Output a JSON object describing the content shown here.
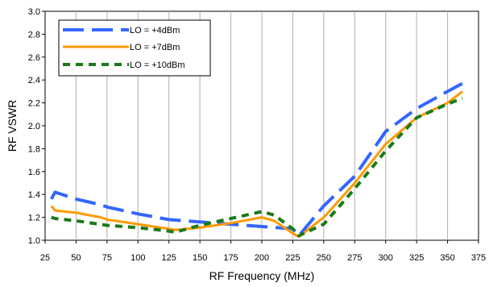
{
  "chart_data": {
    "type": "line",
    "title": "",
    "xlabel": "RF Frequency (MHz)",
    "ylabel": "RF VSWR",
    "xlim": [
      25,
      375
    ],
    "ylim": [
      1.0,
      3.0
    ],
    "xticks": [
      25,
      50,
      75,
      100,
      125,
      150,
      175,
      200,
      225,
      250,
      275,
      300,
      325,
      350,
      375
    ],
    "yticks": [
      1.0,
      1.2,
      1.4,
      1.6,
      1.8,
      2.0,
      2.2,
      2.4,
      2.6,
      2.8,
      3.0
    ],
    "ytick_labels": [
      "1.0",
      "1.2",
      "1.4",
      "1.6",
      "1.8",
      "2.0",
      "2.2",
      "2.4",
      "2.6",
      "2.8",
      "3.0"
    ],
    "grid": "vertical",
    "legend_position": "top-left",
    "series": [
      {
        "name": "LO = +4dBm",
        "color": "#3366ff",
        "style": "long-dash",
        "x": [
          30,
          33,
          50,
          70,
          75,
          100,
          125,
          150,
          175,
          200,
          225,
          230,
          250,
          275,
          300,
          325,
          350,
          362
        ],
        "y": [
          1.36,
          1.42,
          1.36,
          1.31,
          1.29,
          1.23,
          1.18,
          1.16,
          1.14,
          1.12,
          1.1,
          1.04,
          1.3,
          1.56,
          1.95,
          2.15,
          2.3,
          2.37
        ]
      },
      {
        "name": "LO = +7dBm",
        "color": "#ff9900",
        "style": "solid",
        "x": [
          30,
          33,
          50,
          70,
          75,
          100,
          125,
          130,
          150,
          175,
          200,
          210,
          225,
          230,
          250,
          275,
          300,
          325,
          350,
          362
        ],
        "y": [
          1.3,
          1.26,
          1.24,
          1.2,
          1.18,
          1.14,
          1.1,
          1.09,
          1.11,
          1.15,
          1.2,
          1.17,
          1.06,
          1.03,
          1.2,
          1.5,
          1.84,
          2.07,
          2.2,
          2.3
        ]
      },
      {
        "name": "LO = +10dBm",
        "color": "#1a7a1a",
        "style": "short-dash",
        "x": [
          30,
          33,
          50,
          75,
          100,
          125,
          130,
          150,
          175,
          200,
          210,
          225,
          230,
          250,
          275,
          300,
          325,
          350,
          362
        ],
        "y": [
          1.2,
          1.19,
          1.17,
          1.13,
          1.11,
          1.08,
          1.07,
          1.13,
          1.19,
          1.25,
          1.22,
          1.1,
          1.04,
          1.14,
          1.45,
          1.78,
          2.07,
          2.19,
          2.24
        ]
      }
    ]
  }
}
